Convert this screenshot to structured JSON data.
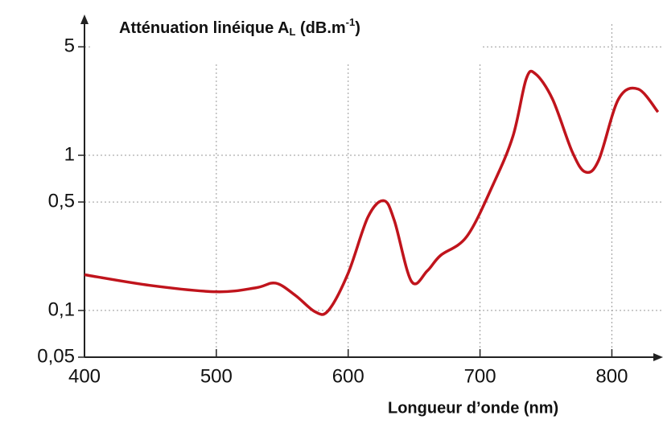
{
  "chart_data": {
    "type": "line",
    "title_parts": [
      "Atténuation linéique A",
      "L",
      " (dB.m",
      "-1",
      ")"
    ],
    "x_label": "Longueur d’onde (nm)",
    "x": [
      400,
      450,
      500,
      530,
      545,
      560,
      575,
      585,
      600,
      615,
      627,
      635,
      648,
      660,
      670,
      690,
      710,
      725,
      735,
      742,
      755,
      770,
      780,
      790,
      805,
      820,
      835
    ],
    "values": [
      0.17,
      0.145,
      0.132,
      0.14,
      0.15,
      0.125,
      0.098,
      0.1,
      0.174,
      0.4,
      0.51,
      0.38,
      0.154,
      0.18,
      0.226,
      0.3,
      0.65,
      1.33,
      3.1,
      3.35,
      2.3,
      1.05,
      0.78,
      0.93,
      2.3,
      2.67,
      1.9
    ],
    "color": "#c0141c",
    "xlim": [
      400,
      840
    ],
    "xticks": [
      400,
      500,
      600,
      700,
      800
    ],
    "ylim": [
      0.05,
      7
    ],
    "yticks": [
      {
        "value": 0.05,
        "label": "0,05"
      },
      {
        "value": 0.1,
        "label": "0,1"
      },
      {
        "value": 0.5,
        "label": "0,5"
      },
      1,
      5
    ],
    "log_y": true,
    "grid": true
  }
}
